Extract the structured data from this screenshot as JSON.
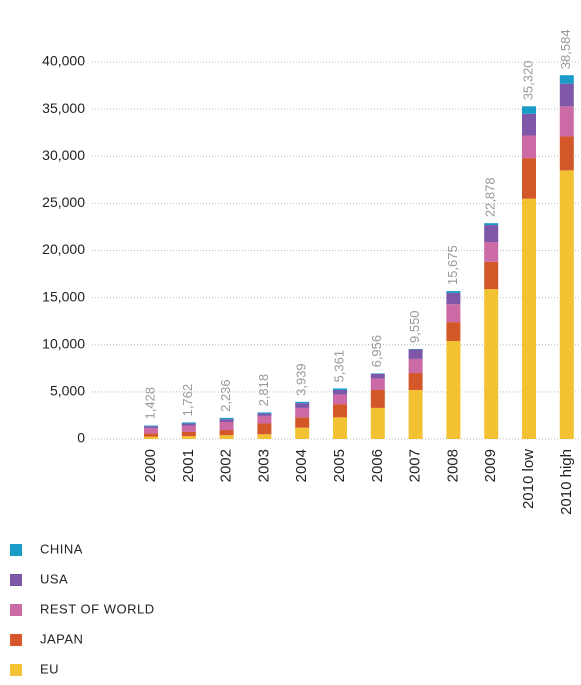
{
  "chart_data": {
    "type": "stacked_bar",
    "categories": [
      "2000",
      "2001",
      "2002",
      "2003",
      "2004",
      "2005",
      "2006",
      "2007",
      "2008",
      "2009",
      "2010 low",
      "2010 high"
    ],
    "series": [
      {
        "name": "EU",
        "color": "#f2c232",
        "values": [
          250,
          300,
          400,
          500,
          1200,
          2300,
          3300,
          5200,
          10400,
          15900,
          25500,
          28500
        ]
      },
      {
        "name": "JAPAN",
        "color": "#d4572a",
        "values": [
          350,
          450,
          550,
          1150,
          1100,
          1400,
          1900,
          1800,
          2000,
          2900,
          4300,
          3600
        ]
      },
      {
        "name": "REST OF WORLD",
        "color": "#cc6aa6",
        "values": [
          550,
          650,
          850,
          800,
          1000,
          1000,
          1200,
          1500,
          1900,
          2100,
          2400,
          3200
        ]
      },
      {
        "name": "USA",
        "color": "#7e57a8",
        "values": [
          200,
          250,
          300,
          250,
          500,
          500,
          500,
          1000,
          1200,
          1800,
          2300,
          2400
        ]
      },
      {
        "name": "CHINA",
        "color": "#1a9cc9",
        "values": [
          80,
          110,
          140,
          120,
          140,
          160,
          60,
          50,
          200,
          200,
          800,
          900
        ]
      }
    ],
    "totals": {
      "values": [
        1428,
        1762,
        2236,
        2818,
        3939,
        5361,
        6956,
        9550,
        15675,
        22878,
        35320,
        38584
      ],
      "value_labels": [
        "1,428",
        "1,762",
        "2,236",
        "2,818",
        "3,939",
        "5,361",
        "6,956",
        "9,550",
        "15,675",
        "22,878",
        "35,320",
        "38,584"
      ]
    },
    "ylim": [
      0,
      40000
    ],
    "yticks": [
      0,
      {
        "value": 5000,
        "label": "5,000"
      },
      {
        "value": 10000,
        "label": "10,000"
      },
      {
        "value": 15000,
        "label": "15,000"
      },
      {
        "value": 20000,
        "label": "20,000"
      },
      {
        "value": 25000,
        "label": "25,000"
      },
      {
        "value": 30000,
        "label": "30,000"
      },
      {
        "value": 35000,
        "label": "35,000"
      },
      {
        "value": 40000,
        "label": "40,000"
      }
    ],
    "grid": true
  }
}
